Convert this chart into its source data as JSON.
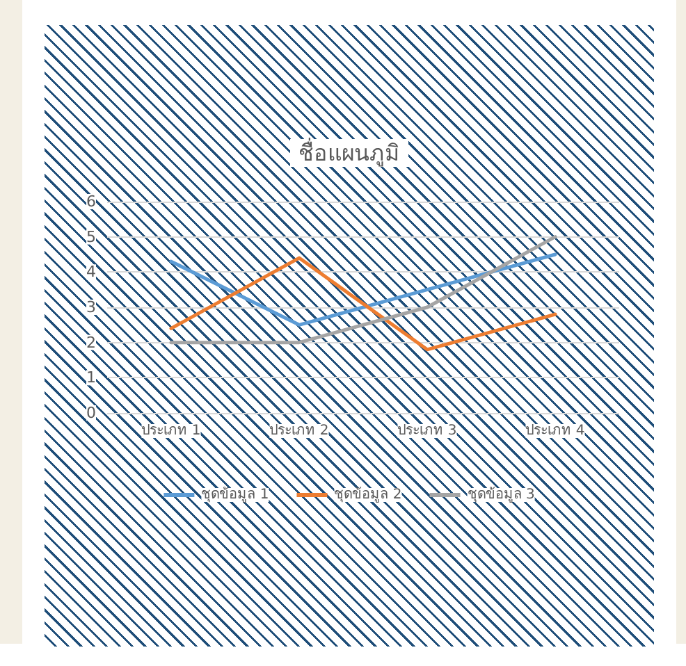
{
  "chart_data": {
    "type": "line",
    "title": "ชื่อแผนภูมิ",
    "categories": [
      "ประเภท 1",
      "ประเภท 2",
      "ประเภท 3",
      "ประเภท 4"
    ],
    "series": [
      {
        "name": "ชุดข้อมูล 1",
        "color": "#5b9bd5",
        "values": [
          4.3,
          2.5,
          3.5,
          4.5
        ]
      },
      {
        "name": "ชุดข้อมูล 2",
        "color": "#ed7d31",
        "values": [
          2.4,
          4.4,
          1.8,
          2.8
        ]
      },
      {
        "name": "ชุดข้อมูล 3",
        "color": "#a5a5a5",
        "values": [
          2,
          2,
          3,
          5
        ]
      }
    ],
    "ylim": [
      0,
      6
    ],
    "yticks": [
      0,
      1,
      2,
      3,
      4,
      5,
      6
    ],
    "grid": "y",
    "legend": "bottom",
    "marker": "none",
    "line_style": "solid"
  }
}
